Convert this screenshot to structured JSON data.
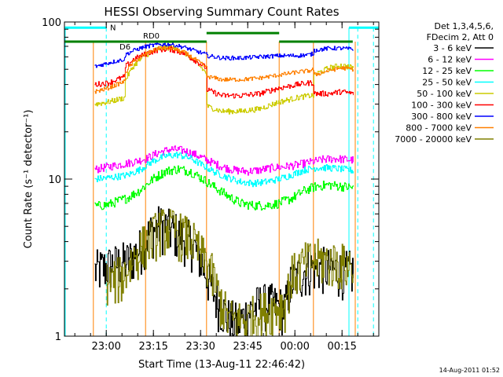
{
  "chart_data": {
    "type": "line",
    "title": "HESSI Observing Summary Count Rates",
    "xlabel": "Start Time (13-Aug-11 22:46:42)",
    "ylabel": "Count Rate (s⁻¹ detector⁻¹)",
    "yscale": "log",
    "ylim": [
      1,
      100
    ],
    "xlim_minutes_after_start": [
      0,
      100
    ],
    "y_ticks": [
      "1",
      "10",
      "100"
    ],
    "x_ticks": [
      {
        "label": "23:00",
        "minute": 13.3
      },
      {
        "label": "23:15",
        "minute": 28.3
      },
      {
        "label": "23:30",
        "minute": 43.3
      },
      {
        "label": "23:45",
        "minute": 58.3
      },
      {
        "label": "00:00",
        "minute": 73.3
      },
      {
        "label": "00:15",
        "minute": 88.3
      }
    ],
    "legend": {
      "placement": "right",
      "header": [
        "Det 1,3,4,5,6,",
        "FDecim 2, Att 0"
      ],
      "entries": [
        {
          "name": "3 - 6 keV",
          "color": "#000000"
        },
        {
          "name": "6 - 12 keV",
          "color": "#ff00ff"
        },
        {
          "name": "12 - 25 keV",
          "color": "#00ff00"
        },
        {
          "name": "25 - 50 keV",
          "color": "#00ffff"
        },
        {
          "name": "50 - 100 keV",
          "color": "#cccc00"
        },
        {
          "name": "100 - 300 keV",
          "color": "#ff0000"
        },
        {
          "name": "300 - 800 keV",
          "color": "#0000ff"
        },
        {
          "name": "800 - 7000 keV",
          "color": "#ff8000"
        },
        {
          "name": "7000 - 20000 keV",
          "color": "#808000"
        }
      ]
    },
    "annotations": [
      {
        "label": "N",
        "color": "#00ffff"
      },
      {
        "label": "RD0",
        "color": "#008000"
      },
      {
        "label": "D6",
        "color": "#008000"
      }
    ],
    "night_bars": [
      {
        "start": 0,
        "end": 13.3
      },
      {
        "start": 90.5,
        "end": 100
      }
    ],
    "night_bar_value": 92,
    "night_vertical_lines": [
      13.3,
      90.5,
      93.3,
      98.3
    ],
    "saa_bar_value": 75,
    "saa_segments": [
      {
        "start": 0,
        "end": 19.2
      },
      {
        "start": 19.2,
        "end": 45.2
      },
      {
        "start": 45.2,
        "end": 68.3
      },
      {
        "start": 68.3,
        "end": 79.2
      },
      {
        "start": 79.2,
        "end": 91.7
      }
    ],
    "data_gap_lines": [
      9.2,
      25.8,
      45.2,
      68.3,
      79.2,
      92.5
    ],
    "data_interval_minutes": [
      9.2,
      92.5
    ],
    "series": [
      {
        "name": "3 - 6 keV",
        "color": "#000000",
        "noise": 0.35,
        "x": [
          9.6,
          14,
          20,
          24,
          26,
          30,
          33,
          36,
          40,
          43,
          46,
          49,
          52,
          55,
          58,
          62,
          66,
          70,
          72,
          76,
          80,
          84,
          88,
          92
        ],
        "values": [
          2.6,
          2.8,
          3.0,
          3.6,
          4.3,
          5.1,
          4.8,
          4.5,
          4.0,
          3.2,
          2.2,
          1.6,
          1.3,
          1.2,
          1.4,
          1.6,
          1.6,
          1.5,
          2.2,
          2.6,
          2.8,
          2.7,
          2.6,
          2.6
        ]
      },
      {
        "name": "6 - 12 keV",
        "color": "#ff00ff",
        "noise": 0.06,
        "x": [
          9.6,
          14,
          20,
          26,
          30,
          34,
          38,
          42,
          46,
          50,
          54,
          58,
          62,
          66,
          70,
          74,
          78,
          82,
          86,
          92
        ],
        "values": [
          11.5,
          12,
          12.6,
          13.5,
          14.8,
          15.5,
          15.2,
          14.2,
          13.0,
          12.0,
          11.4,
          11.2,
          11.4,
          11.8,
          12.0,
          12.3,
          12.8,
          13.3,
          13.5,
          13.2
        ]
      },
      {
        "name": "12 - 25 keV",
        "color": "#00ff00",
        "noise": 0.07,
        "x": [
          9.6,
          14,
          20,
          24,
          28,
          32,
          36,
          40,
          44,
          48,
          52,
          56,
          60,
          64,
          68,
          72,
          76,
          80,
          84,
          88,
          92
        ],
        "values": [
          6.7,
          6.9,
          7.6,
          8.5,
          10.0,
          11.2,
          11.6,
          11.2,
          10.0,
          8.8,
          7.8,
          7.0,
          6.8,
          6.8,
          7.0,
          7.5,
          8.4,
          9.0,
          9.2,
          9.0,
          8.8
        ]
      },
      {
        "name": "25 - 50 keV",
        "color": "#00ffff",
        "noise": 0.05,
        "x": [
          9.6,
          14,
          20,
          24,
          28,
          32,
          36,
          40,
          44,
          48,
          52,
          56,
          60,
          64,
          68,
          72,
          76,
          80,
          84,
          88,
          92
        ],
        "values": [
          10.0,
          10.2,
          10.6,
          11.5,
          13.0,
          14.0,
          14.3,
          13.6,
          12.2,
          11.0,
          10.2,
          9.6,
          9.4,
          9.6,
          10.0,
          10.6,
          11.4,
          11.8,
          11.8,
          11.6,
          11.3
        ]
      },
      {
        "name": "50 - 100 keV",
        "color": "#cccc00",
        "noise": 0.04,
        "x": [
          9.6,
          14,
          19.2,
          19.3,
          22,
          26,
          30,
          34,
          38,
          42,
          45.1,
          45.3,
          50,
          56,
          62,
          68.2,
          68.4,
          74,
          78,
          79.1,
          79.3,
          84,
          88,
          92
        ],
        "values": [
          30,
          31,
          33,
          43,
          53,
          62,
          68,
          69,
          64,
          55,
          47,
          29,
          27,
          27,
          28,
          31,
          31,
          33,
          34,
          34,
          46,
          51,
          53,
          51
        ]
      },
      {
        "name": "100 - 300 keV",
        "color": "#ff0000",
        "noise": 0.04,
        "x": [
          9.6,
          14,
          19.2,
          19.3,
          22,
          26,
          30,
          34,
          38,
          42,
          45.1,
          45.3,
          50,
          56,
          62,
          68.2,
          68.4,
          74,
          78,
          79.1,
          79.3,
          84,
          88,
          92
        ],
        "values": [
          40,
          41,
          45,
          52,
          58,
          63,
          67,
          67,
          63,
          56,
          51,
          37,
          34,
          34,
          35,
          38,
          38,
          40,
          41,
          41,
          35,
          35,
          36,
          35
        ]
      },
      {
        "name": "300 - 800 keV",
        "color": "#0000ff",
        "noise": 0.03,
        "x": [
          9.6,
          14,
          19.2,
          19.3,
          22,
          26,
          30,
          34,
          38,
          42,
          45.1,
          45.3,
          50,
          56,
          62,
          68.2,
          68.4,
          74,
          78,
          79.1,
          79.3,
          84,
          88,
          92
        ],
        "values": [
          52,
          55,
          58,
          62,
          66,
          70,
          72,
          72,
          69,
          65,
          62,
          61,
          59,
          59,
          60,
          61,
          61,
          61,
          62,
          63,
          66,
          68,
          68,
          67
        ]
      },
      {
        "name": "800 - 7000 keV",
        "color": "#ff8000",
        "noise": 0.03,
        "x": [
          9.6,
          14,
          19.2,
          19.3,
          22,
          26,
          30,
          34,
          38,
          42,
          45.1,
          45.3,
          50,
          56,
          62,
          68.2,
          68.4,
          74,
          78,
          79.1,
          79.3,
          84,
          88,
          92
        ],
        "values": [
          36,
          38,
          42,
          48,
          56,
          63,
          68,
          68,
          64,
          57,
          51,
          45,
          43,
          43,
          44,
          46,
          46,
          48,
          49,
          50,
          46,
          49,
          51,
          50
        ]
      },
      {
        "name": "7000 - 20000 keV",
        "color": "#808000",
        "noise": 0.35,
        "x": [
          13.3,
          16,
          19,
          22,
          26,
          30,
          33,
          36,
          40,
          43,
          46,
          49,
          52,
          55,
          58,
          62,
          66,
          70,
          72,
          76,
          80,
          84,
          88,
          92
        ],
        "values": [
          2.2,
          2.3,
          2.5,
          3.2,
          4.0,
          4.8,
          4.9,
          4.6,
          4.2,
          3.4,
          2.8,
          1.8,
          1.3,
          1.25,
          1.3,
          1.4,
          1.5,
          1.6,
          2.4,
          2.9,
          3.1,
          3.0,
          2.9,
          2.8
        ]
      }
    ]
  },
  "footer_timestamp": "14-Aug-2011 01:52"
}
